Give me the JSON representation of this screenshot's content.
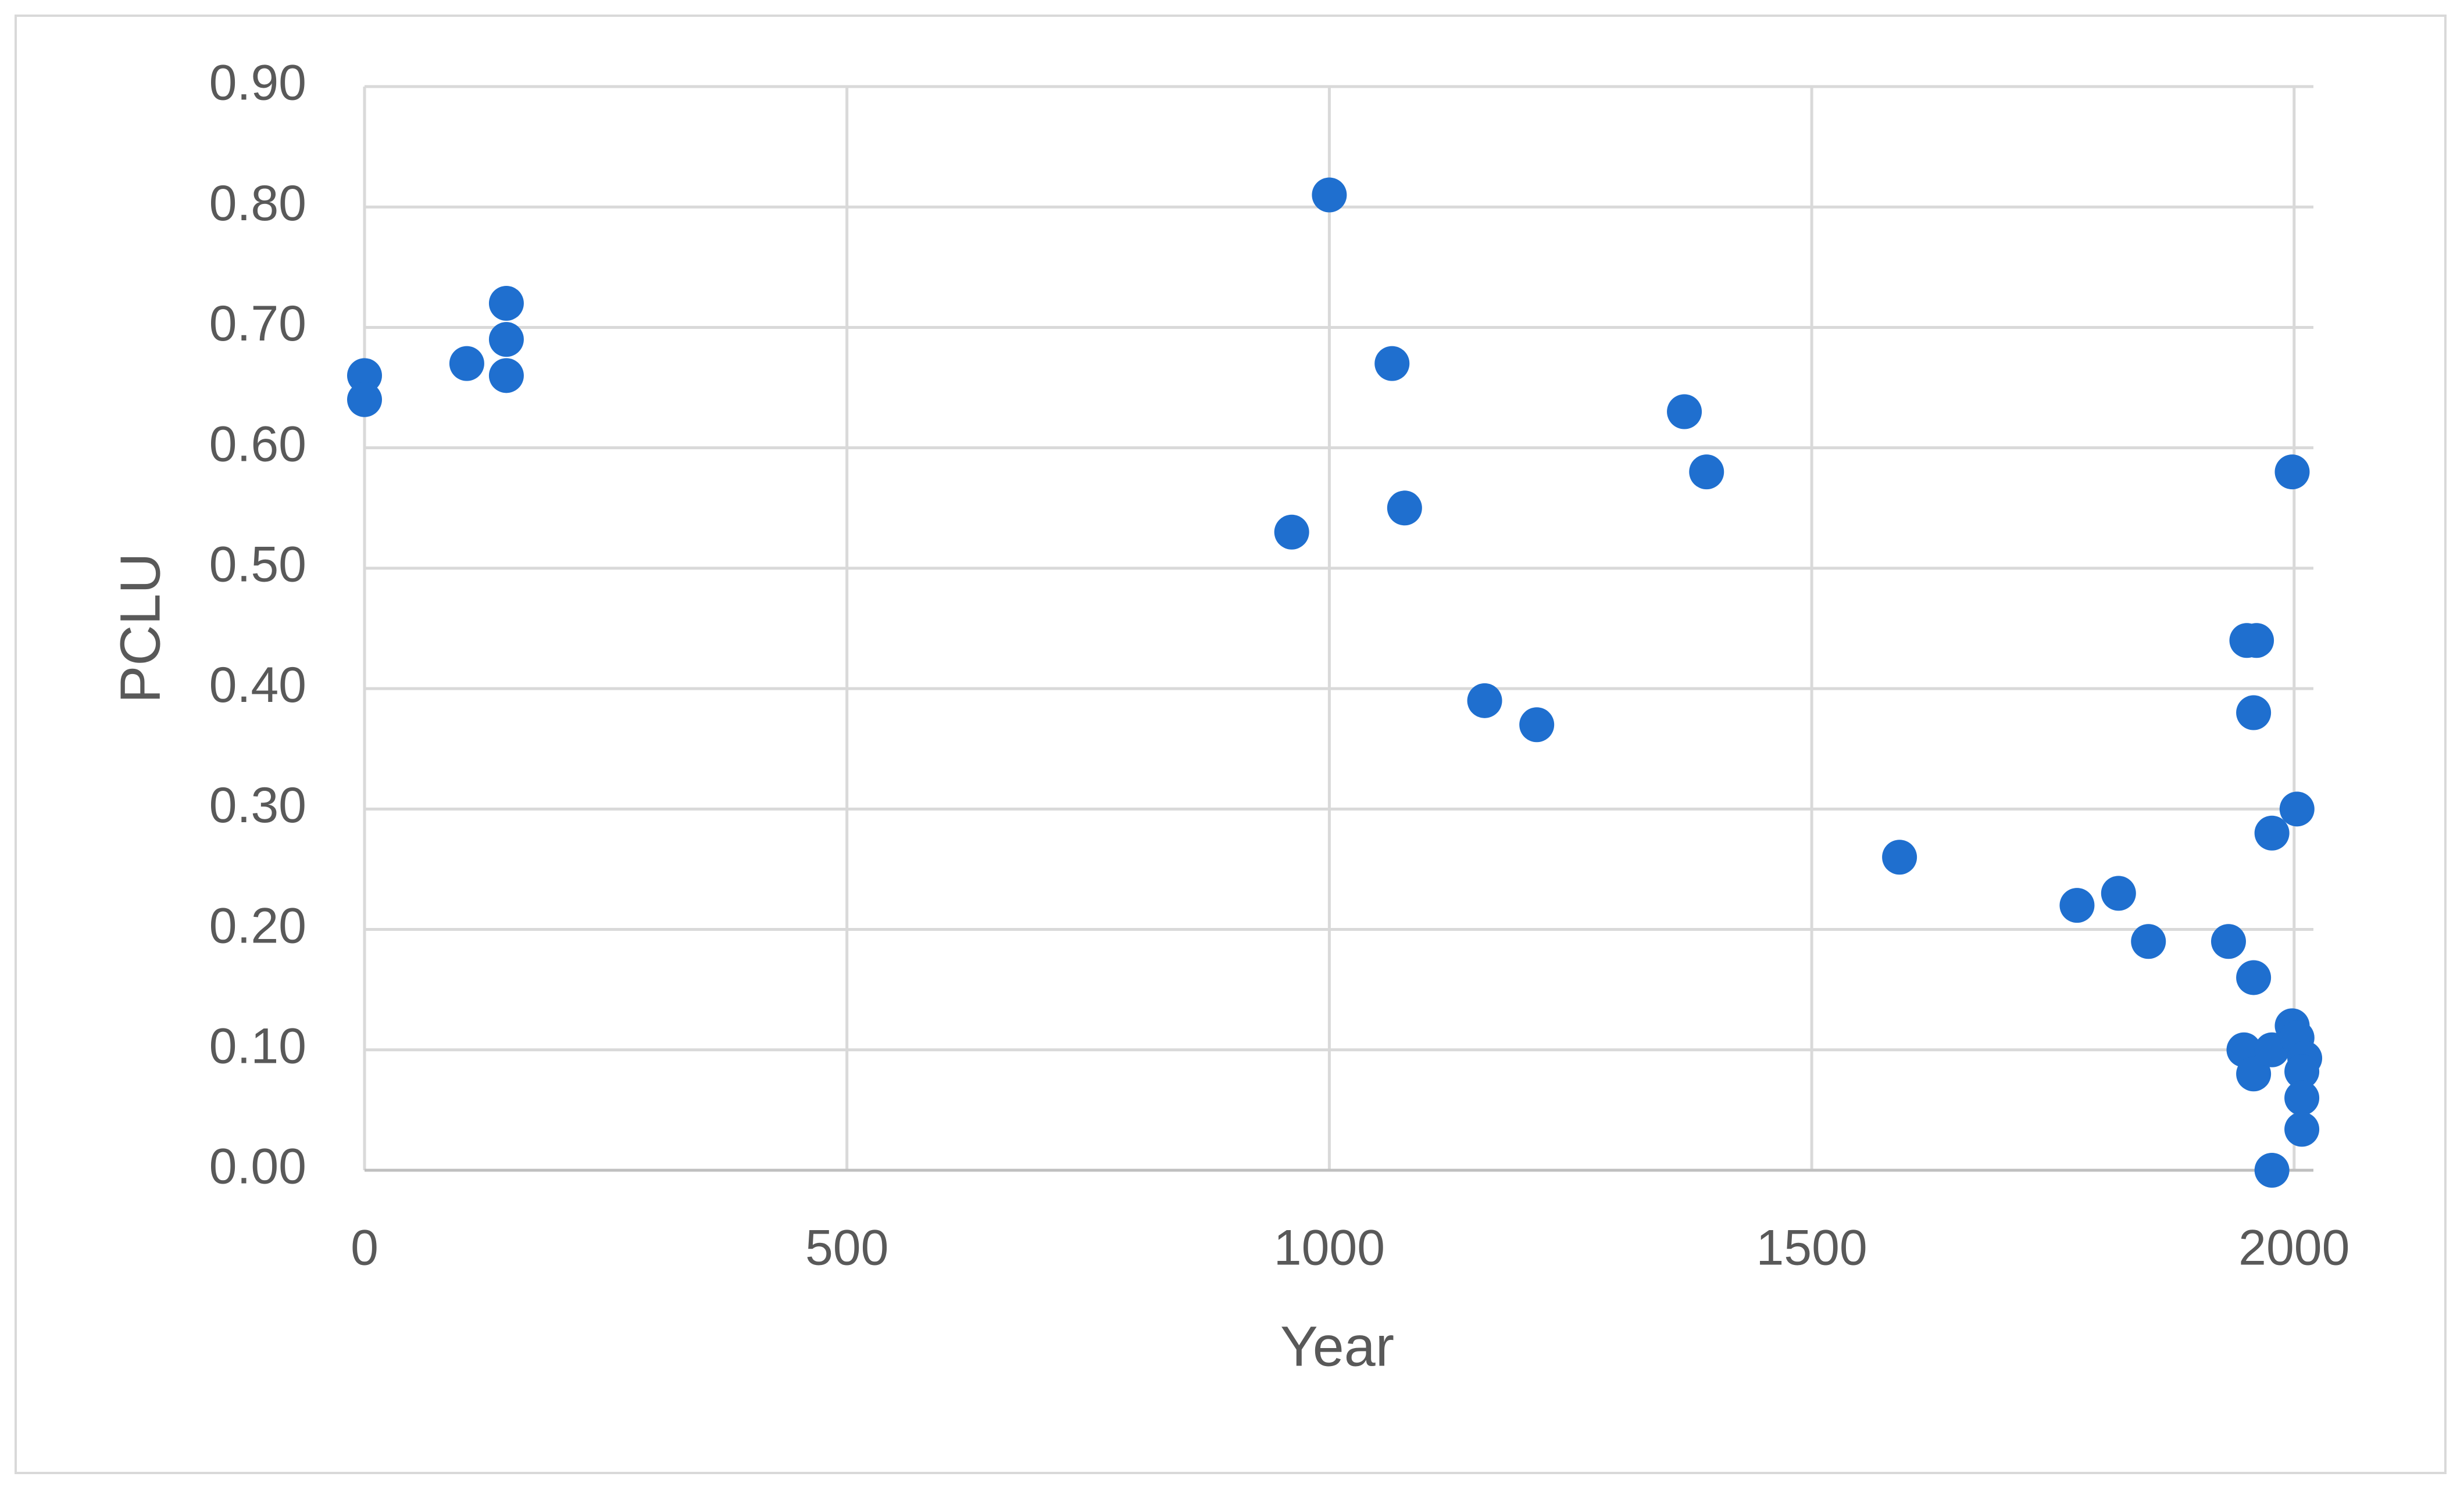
{
  "chart_data": {
    "type": "scatter",
    "x_label": "Year",
    "y_label": "PCLU",
    "color": "#1f6fcf",
    "grid": true,
    "xlim": [
      0,
      2020
    ],
    "xticks": [
      0,
      500,
      1000,
      1500,
      2000
    ],
    "ylim": [
      0,
      0.9
    ],
    "yticks": [
      {
        "value": 0,
        "label": "0.00"
      },
      {
        "value": 0.1,
        "label": "0.10"
      },
      {
        "value": 0.2,
        "label": "0.20"
      },
      {
        "value": 0.3,
        "label": "0.30"
      },
      {
        "value": 0.4,
        "label": "0.40"
      },
      {
        "value": 0.5,
        "label": "0.50"
      },
      {
        "value": 0.6,
        "label": "0.60"
      },
      {
        "value": 0.7,
        "label": "0.70"
      },
      {
        "value": 0.8,
        "label": "0.80"
      },
      {
        "value": 0.9,
        "label": "0.90"
      }
    ],
    "x": [
      0,
      0,
      106,
      147,
      147,
      147,
      961,
      1000,
      1065,
      1078,
      1161,
      1215,
      1368,
      1391,
      1591,
      1775,
      1818,
      1849,
      1932,
      1951,
      1961,
      1958,
      1958,
      1977,
      1998,
      2003,
      1948,
      1958,
      1977,
      1998,
      2003,
      2011,
      2008,
      2008,
      2008,
      1977
    ],
    "values": [
      0.66,
      0.64,
      0.67,
      0.72,
      0.69,
      0.66,
      0.53,
      0.81,
      0.67,
      0.55,
      0.39,
      0.37,
      0.63,
      0.58,
      0.26,
      0.22,
      0.23,
      0.19,
      0.19,
      0.44,
      0.44,
      0.38,
      0.16,
      0.28,
      0.58,
      0.3,
      0.1,
      0.08,
      0.1,
      0.12,
      0.11,
      0.093,
      0.082,
      0.06,
      0.034,
      0.0
    ]
  }
}
